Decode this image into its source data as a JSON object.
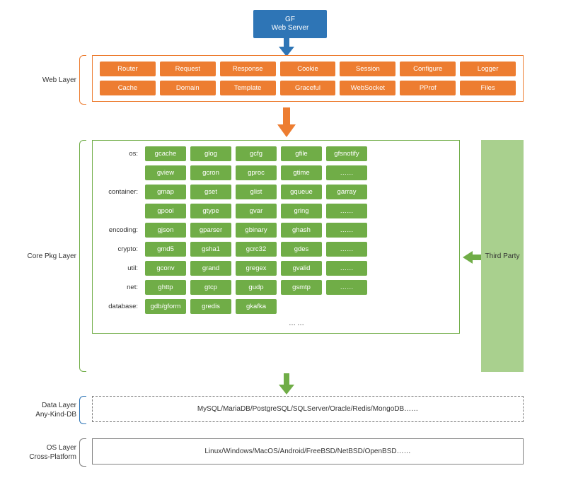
{
  "colors": {
    "blue": "#2e75b6",
    "orange": "#ed7d31",
    "green": "#70ad47",
    "greenLight": "#a9d08e",
    "gray": "#7f7f7f",
    "text": "#333333",
    "white": "#ffffff"
  },
  "topBox": {
    "line1": "GF",
    "line2": "Web Server"
  },
  "labels": {
    "web": "Web Layer",
    "core": "Core Pkg Layer",
    "data": "Data Layer\nAny-Kind-DB",
    "os": "OS Layer\nCross-Platform",
    "third": "Third Party"
  },
  "webLayer": {
    "row1": [
      "Router",
      "Request",
      "Response",
      "Cookie",
      "Session",
      "Configure",
      "Logger"
    ],
    "row2": [
      "Cache",
      "Domain",
      "Template",
      "Graceful",
      "WebSocket",
      "PProf",
      "Files"
    ]
  },
  "coreLayer": {
    "groups": [
      {
        "label": "os:",
        "rows": [
          [
            "gcache",
            "glog",
            "gcfg",
            "gfile",
            "gfsnotify"
          ],
          [
            "gview",
            "gcron",
            "gproc",
            "gtime",
            "……"
          ]
        ]
      },
      {
        "label": "container:",
        "rows": [
          [
            "gmap",
            "gset",
            "glist",
            "gqueue",
            "garray"
          ],
          [
            "gpool",
            "gtype",
            "gvar",
            "gring",
            "……"
          ]
        ]
      },
      {
        "label": "encoding:",
        "rows": [
          [
            "gjson",
            "gparser",
            "gbinary",
            "ghash",
            "……"
          ]
        ]
      },
      {
        "label": "crypto:",
        "rows": [
          [
            "gmd5",
            "gsha1",
            "gcrc32",
            "gdes",
            "……"
          ]
        ]
      },
      {
        "label": "util:",
        "rows": [
          [
            "gconv",
            "grand",
            "gregex",
            "gvalid",
            "……"
          ]
        ]
      },
      {
        "label": "net:",
        "rows": [
          [
            "ghttp",
            "gtcp",
            "gudp",
            "gsmtp",
            "……"
          ]
        ]
      },
      {
        "label": "database:",
        "rows": [
          [
            "gdb/gform",
            "gredis",
            "gkafka"
          ]
        ]
      }
    ],
    "more": "……"
  },
  "dataLayer": {
    "text": "MySQL/MariaDB/PostgreSQL/SQLServer/Oracle/Redis/MongoDB……"
  },
  "osLayer": {
    "text": "Linux/Windows/MacOS/Android/FreeBSD/NetBSD/OpenBSD……"
  }
}
